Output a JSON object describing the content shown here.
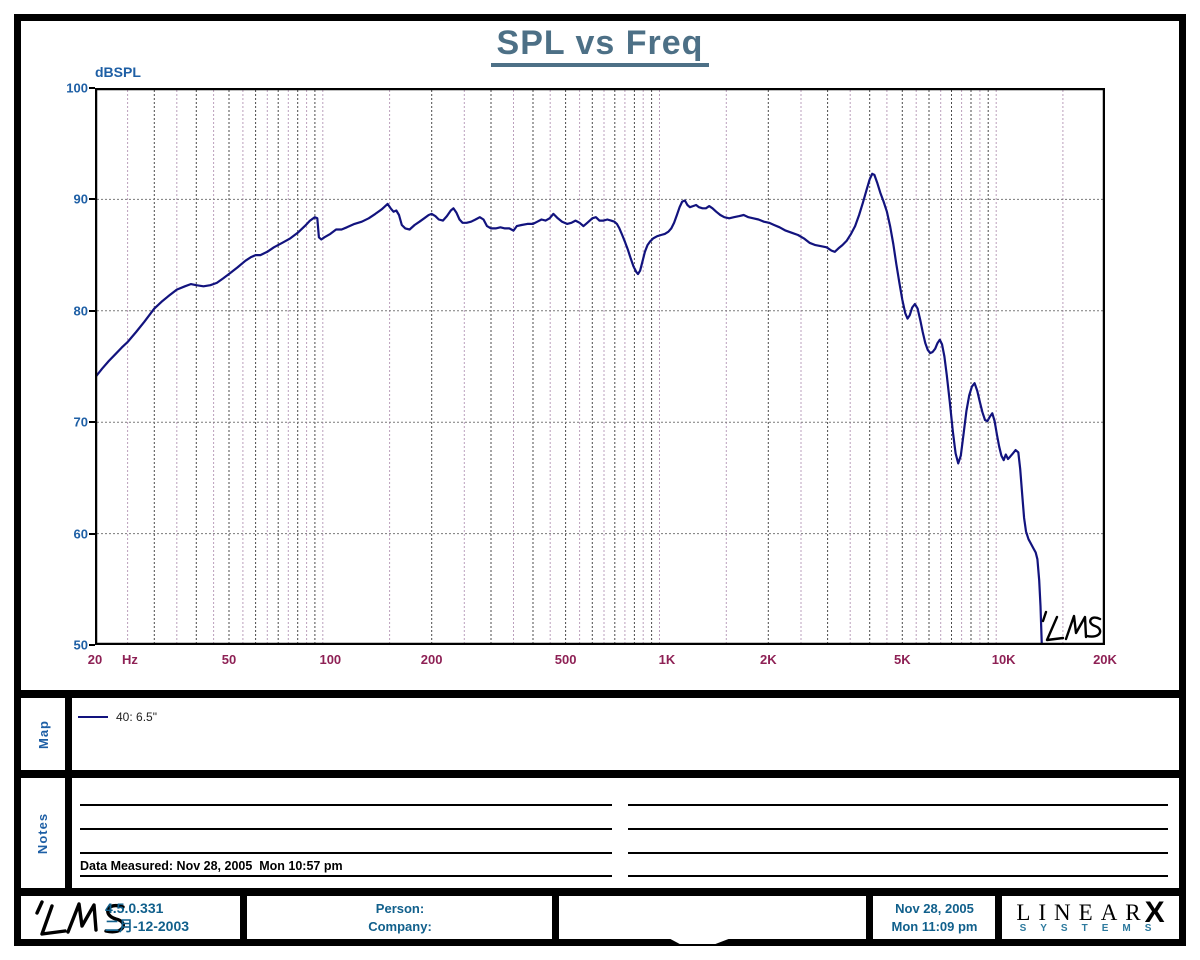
{
  "title": "SPL vs Freq",
  "colors": {
    "axis_blue": "#1e5fa5",
    "tick_maroon": "#8e2155",
    "curve_navy": "#12137e",
    "title_slate": "#4d7086",
    "footer_blue": "#11608c",
    "brand_blue": "#2d7a9e"
  },
  "chart_data": {
    "type": "line",
    "title": "SPL vs Freq",
    "ylabel": "dBSPL",
    "x_unit": "Hz",
    "x_scale": "log",
    "xlim": [
      20,
      20000
    ],
    "ylim": [
      50,
      100
    ],
    "grid": "log minor verticals; dotted horizontal majors every 10 dB",
    "legend_position": "map-panel-below",
    "y_ticks": [
      100,
      90,
      80,
      70,
      60,
      50
    ],
    "x_ticks": [
      {
        "v": 20,
        "label": "20"
      },
      {
        "v": 50,
        "label": "50"
      },
      {
        "v": 100,
        "label": "100"
      },
      {
        "v": 200,
        "label": "200"
      },
      {
        "v": 500,
        "label": "500"
      },
      {
        "v": 1000,
        "label": "1K"
      },
      {
        "v": 2000,
        "label": "2K"
      },
      {
        "v": 5000,
        "label": "5K"
      },
      {
        "v": 10000,
        "label": "10K"
      },
      {
        "v": 20000,
        "label": "20K"
      }
    ],
    "watermark": "LMS",
    "series": [
      {
        "name": "40: 6.5\"",
        "color": "#12137e",
        "points": [
          [
            20,
            74
          ],
          [
            21,
            74.8
          ],
          [
            22,
            75.5
          ],
          [
            23,
            76.1
          ],
          [
            24,
            76.7
          ],
          [
            25,
            77.2
          ],
          [
            26.5,
            78.1
          ],
          [
            28,
            79
          ],
          [
            30,
            80.2
          ],
          [
            31.5,
            80.8
          ],
          [
            33,
            81.3
          ],
          [
            35,
            81.9
          ],
          [
            37,
            82.2
          ],
          [
            38.5,
            82.4
          ],
          [
            40,
            82.3
          ],
          [
            42,
            82.2
          ],
          [
            44,
            82.3
          ],
          [
            46,
            82.5
          ],
          [
            48,
            82.9
          ],
          [
            50,
            83.3
          ],
          [
            53,
            83.9
          ],
          [
            56,
            84.5
          ],
          [
            58,
            84.8
          ],
          [
            60,
            85
          ],
          [
            62,
            85
          ],
          [
            65,
            85.3
          ],
          [
            68,
            85.7
          ],
          [
            72,
            86.1
          ],
          [
            76,
            86.5
          ],
          [
            80,
            87
          ],
          [
            84,
            87.6
          ],
          [
            87,
            88.1
          ],
          [
            90,
            88.4
          ],
          [
            91.5,
            88.3
          ],
          [
            92.5,
            86.6
          ],
          [
            94,
            86.4
          ],
          [
            96,
            86.6
          ],
          [
            100,
            86.9
          ],
          [
            104,
            87.3
          ],
          [
            108,
            87.3
          ],
          [
            112,
            87.5
          ],
          [
            118,
            87.8
          ],
          [
            124,
            88
          ],
          [
            130,
            88.3
          ],
          [
            136,
            88.7
          ],
          [
            142,
            89.1
          ],
          [
            148,
            89.6
          ],
          [
            151,
            89.2
          ],
          [
            154,
            88.9
          ],
          [
            157,
            89
          ],
          [
            160,
            88.6
          ],
          [
            163,
            87.7
          ],
          [
            167,
            87.4
          ],
          [
            172,
            87.3
          ],
          [
            178,
            87.7
          ],
          [
            184,
            88
          ],
          [
            190,
            88.3
          ],
          [
            196,
            88.6
          ],
          [
            200,
            88.7
          ],
          [
            205,
            88.5
          ],
          [
            210,
            88.2
          ],
          [
            216,
            88.1
          ],
          [
            222,
            88.5
          ],
          [
            228,
            89
          ],
          [
            232,
            89.2
          ],
          [
            237,
            88.8
          ],
          [
            242,
            88.2
          ],
          [
            247,
            87.9
          ],
          [
            254,
            87.9
          ],
          [
            262,
            88
          ],
          [
            270,
            88.2
          ],
          [
            278,
            88.4
          ],
          [
            285,
            88.2
          ],
          [
            292,
            87.6
          ],
          [
            300,
            87.4
          ],
          [
            310,
            87.4
          ],
          [
            320,
            87.5
          ],
          [
            330,
            87.4
          ],
          [
            340,
            87.4
          ],
          [
            350,
            87.2
          ],
          [
            358,
            87.6
          ],
          [
            370,
            87.7
          ],
          [
            385,
            87.8
          ],
          [
            400,
            87.8
          ],
          [
            412,
            88
          ],
          [
            424,
            88.2
          ],
          [
            436,
            88.1
          ],
          [
            448,
            88.3
          ],
          [
            460,
            88.7
          ],
          [
            474,
            88.3
          ],
          [
            488,
            88
          ],
          [
            505,
            87.8
          ],
          [
            520,
            87.9
          ],
          [
            535,
            88.1
          ],
          [
            550,
            87.9
          ],
          [
            565,
            87.6
          ],
          [
            580,
            87.9
          ],
          [
            600,
            88.3
          ],
          [
            615,
            88.4
          ],
          [
            630,
            88.1
          ],
          [
            648,
            88.1
          ],
          [
            665,
            88.2
          ],
          [
            682,
            88.1
          ],
          [
            698,
            88
          ],
          [
            710,
            87.8
          ],
          [
            722,
            87.4
          ],
          [
            736,
            86.8
          ],
          [
            750,
            86.2
          ],
          [
            765,
            85.5
          ],
          [
            780,
            84.7
          ],
          [
            795,
            84
          ],
          [
            810,
            83.5
          ],
          [
            820,
            83.3
          ],
          [
            832,
            83.6
          ],
          [
            845,
            84.4
          ],
          [
            860,
            85.3
          ],
          [
            875,
            85.9
          ],
          [
            890,
            86.2
          ],
          [
            910,
            86.5
          ],
          [
            935,
            86.7
          ],
          [
            960,
            86.8
          ],
          [
            985,
            86.9
          ],
          [
            1010,
            87.1
          ],
          [
            1030,
            87.4
          ],
          [
            1050,
            87.9
          ],
          [
            1070,
            88.6
          ],
          [
            1090,
            89.3
          ],
          [
            1110,
            89.8
          ],
          [
            1130,
            89.9
          ],
          [
            1150,
            89.5
          ],
          [
            1170,
            89.3
          ],
          [
            1195,
            89.4
          ],
          [
            1220,
            89.5
          ],
          [
            1245,
            89.3
          ],
          [
            1275,
            89.2
          ],
          [
            1305,
            89.2
          ],
          [
            1335,
            89.4
          ],
          [
            1365,
            89.2
          ],
          [
            1400,
            88.9
          ],
          [
            1440,
            88.6
          ],
          [
            1480,
            88.4
          ],
          [
            1530,
            88.3
          ],
          [
            1580,
            88.4
          ],
          [
            1640,
            88.5
          ],
          [
            1690,
            88.6
          ],
          [
            1745,
            88.4
          ],
          [
            1805,
            88.3
          ],
          [
            1870,
            88.2
          ],
          [
            1940,
            88
          ],
          [
            2010,
            87.9
          ],
          [
            2080,
            87.7
          ],
          [
            2160,
            87.5
          ],
          [
            2250,
            87.2
          ],
          [
            2350,
            87
          ],
          [
            2450,
            86.8
          ],
          [
            2550,
            86.5
          ],
          [
            2650,
            86.1
          ],
          [
            2760,
            85.9
          ],
          [
            2870,
            85.8
          ],
          [
            2980,
            85.7
          ],
          [
            3080,
            85.4
          ],
          [
            3150,
            85.3
          ],
          [
            3230,
            85.6
          ],
          [
            3320,
            85.9
          ],
          [
            3420,
            86.3
          ],
          [
            3520,
            86.9
          ],
          [
            3620,
            87.6
          ],
          [
            3720,
            88.6
          ],
          [
            3820,
            89.7
          ],
          [
            3920,
            90.9
          ],
          [
            4000,
            91.8
          ],
          [
            4070,
            92.3
          ],
          [
            4130,
            92.2
          ],
          [
            4210,
            91.5
          ],
          [
            4300,
            90.6
          ],
          [
            4400,
            89.8
          ],
          [
            4500,
            88.9
          ],
          [
            4600,
            87.6
          ],
          [
            4700,
            86
          ],
          [
            4800,
            84.2
          ],
          [
            4900,
            82.5
          ],
          [
            5000,
            81
          ],
          [
            5100,
            79.8
          ],
          [
            5180,
            79.3
          ],
          [
            5260,
            79.6
          ],
          [
            5350,
            80.3
          ],
          [
            5450,
            80.6
          ],
          [
            5550,
            80.2
          ],
          [
            5650,
            79.2
          ],
          [
            5750,
            78.1
          ],
          [
            5850,
            77.1
          ],
          [
            5950,
            76.5
          ],
          [
            6050,
            76.2
          ],
          [
            6150,
            76.3
          ],
          [
            6260,
            76.6
          ],
          [
            6360,
            77.1
          ],
          [
            6460,
            77.4
          ],
          [
            6560,
            77
          ],
          [
            6670,
            75.9
          ],
          [
            6780,
            74.2
          ],
          [
            6920,
            71.8
          ],
          [
            7060,
            69.2
          ],
          [
            7200,
            67.2
          ],
          [
            7330,
            66.3
          ],
          [
            7460,
            67
          ],
          [
            7600,
            68.9
          ],
          [
            7750,
            71
          ],
          [
            7900,
            72.4
          ],
          [
            8050,
            73.2
          ],
          [
            8200,
            73.5
          ],
          [
            8350,
            72.8
          ],
          [
            8500,
            71.8
          ],
          [
            8650,
            70.9
          ],
          [
            8800,
            70.2
          ],
          [
            8950,
            70.1
          ],
          [
            9100,
            70.5
          ],
          [
            9250,
            70.8
          ],
          [
            9400,
            70.1
          ],
          [
            9550,
            68.9
          ],
          [
            9700,
            67.8
          ],
          [
            9850,
            67
          ],
          [
            10000,
            66.6
          ],
          [
            10150,
            67.1
          ],
          [
            10300,
            66.7
          ],
          [
            10450,
            66.9
          ],
          [
            10650,
            67.2
          ],
          [
            10850,
            67.5
          ],
          [
            11050,
            67.3
          ],
          [
            11200,
            65.8
          ],
          [
            11350,
            63.5
          ],
          [
            11500,
            61.4
          ],
          [
            11650,
            60.2
          ],
          [
            11850,
            59.5
          ],
          [
            12050,
            59.1
          ],
          [
            12250,
            58.7
          ],
          [
            12450,
            58.3
          ],
          [
            12600,
            57.7
          ],
          [
            12750,
            55.8
          ],
          [
            12870,
            53.5
          ],
          [
            12980,
            50
          ]
        ]
      }
    ]
  },
  "map_section": {
    "label": "Map",
    "legend": [
      {
        "name": "40: 6.5\"",
        "color": "#12137e"
      }
    ]
  },
  "notes_section": {
    "label": "Notes",
    "data_measured": "Data Measured: Nov 28, 2005  Mon 10:57 pm"
  },
  "footer": {
    "logo": "LMS",
    "version": "4.5.0.331",
    "build_date": "二月-12-2003",
    "person_label": "Person:",
    "company_label": "Company:",
    "date": "Nov 28, 2005",
    "time": "Mon 11:09 pm",
    "brand": {
      "line1": "LINEAR",
      "x": "X",
      "line2": "SYSTEMS"
    }
  }
}
